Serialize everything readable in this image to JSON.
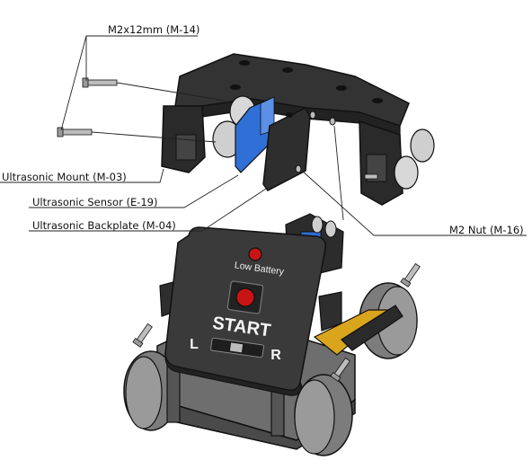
{
  "callouts": {
    "screw": "M2x12mm (M-14)",
    "mount": "Ultrasonic Mount (M-03)",
    "sensor": "Ultrasonic Sensor (E-19)",
    "backplate": "Ultrasonic Backplate (M-04)",
    "nut": "M2 Nut (M-16)"
  },
  "robot": {
    "indicator_label": "Low Battery",
    "start_label": "START",
    "left_label": "L",
    "right_label": "R"
  },
  "colors": {
    "body": "#3a3a3a",
    "body_light": "#555555",
    "wheel": "#8a8a8a",
    "sensor_blue": "#2f6fd6",
    "red_button": "#c81414",
    "pcb_yellow": "#d8a51c",
    "leader_line": "#222222"
  }
}
